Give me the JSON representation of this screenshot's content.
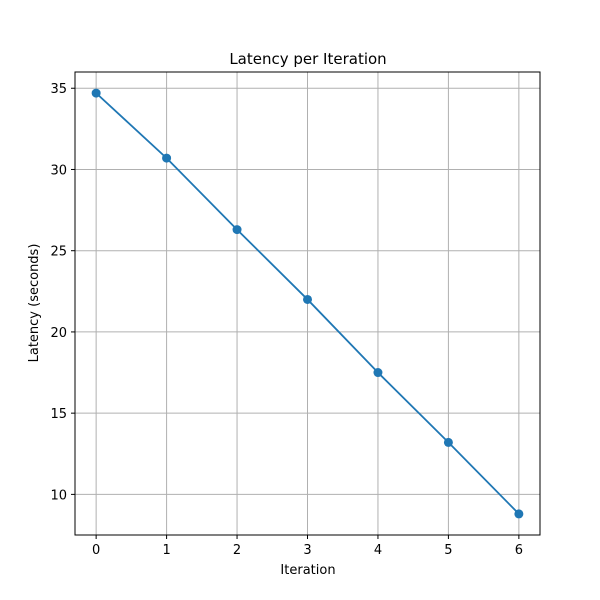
{
  "chart_data": {
    "type": "line",
    "title": "Latency per Iteration",
    "xlabel": "Iteration",
    "ylabel": "Latency (seconds)",
    "x": [
      0,
      1,
      2,
      3,
      4,
      5,
      6
    ],
    "series": [
      {
        "values": [
          34.7,
          30.7,
          26.3,
          22.0,
          17.5,
          13.2,
          8.8
        ],
        "color": "#1f77b4",
        "marker": "circle"
      }
    ],
    "xlim": [
      -0.3,
      6.3
    ],
    "ylim": [
      7.5,
      36.0
    ],
    "xticks": [
      0,
      1,
      2,
      3,
      4,
      5,
      6
    ],
    "xtick_labels": [
      "0",
      "1",
      "2",
      "3",
      "4",
      "5",
      "6"
    ],
    "yticks": [
      10,
      15,
      20,
      25,
      30,
      35
    ],
    "ytick_labels": [
      "10",
      "15",
      "20",
      "25",
      "30",
      "35"
    ],
    "grid": true,
    "grid_color": "#b0b0b0",
    "legend": "none"
  }
}
